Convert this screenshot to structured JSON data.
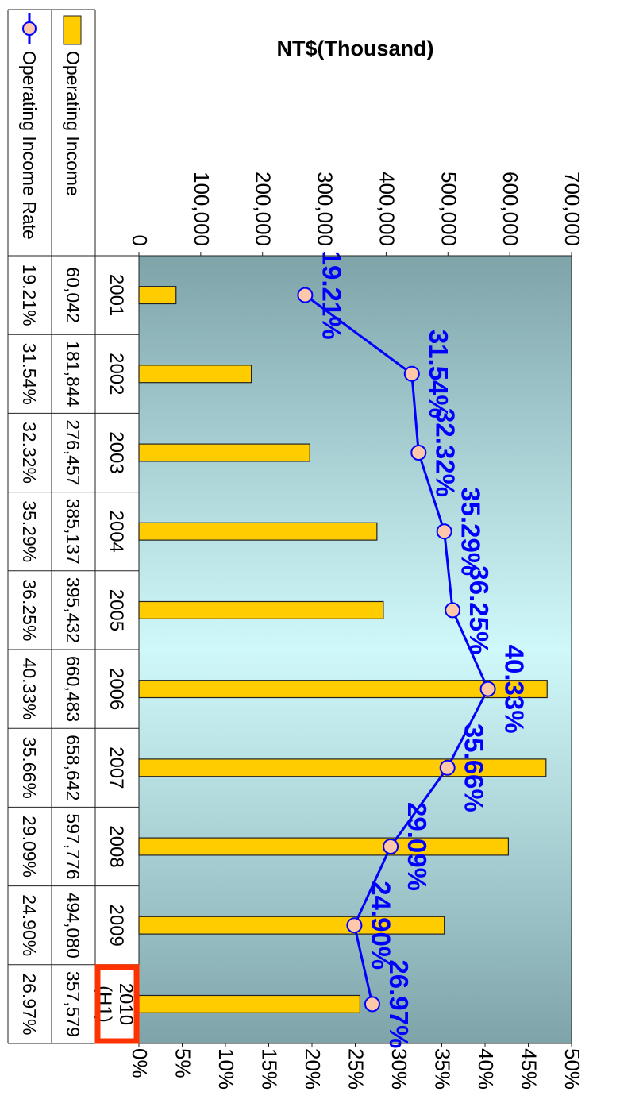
{
  "chart_data": {
    "type": "bar",
    "title": "",
    "xlabel": "",
    "ylabel": "NT$(Thousand)",
    "ylim": [
      0,
      700000
    ],
    "y2lim": [
      0,
      0.5
    ],
    "categories": [
      "2001",
      "2002",
      "2003",
      "2004",
      "2005",
      "2006",
      "2007",
      "2008",
      "2009",
      "2010 (H1)"
    ],
    "series": [
      {
        "name": "Operating Income",
        "kind": "bar",
        "axis": "left",
        "color": "#FFCC00",
        "values": [
          60042,
          181844,
          276457,
          385137,
          395432,
          660483,
          658642,
          597776,
          494080,
          357579
        ]
      },
      {
        "name": "Operating Income Rate",
        "kind": "line",
        "axis": "right",
        "color": "#0000FF",
        "marker_color": "#FFC8A8",
        "values": [
          0.1921,
          0.3154,
          0.3232,
          0.3529,
          0.3625,
          0.4033,
          0.3566,
          0.2909,
          0.249,
          0.2697
        ]
      }
    ],
    "left_ticks": [
      "0",
      "100,000",
      "200,000",
      "300,000",
      "400,000",
      "500,000",
      "600,000",
      "700,000"
    ],
    "right_ticks": [
      "0%",
      "5%",
      "10%",
      "15%",
      "20%",
      "25%",
      "30%",
      "35%",
      "40%",
      "45%",
      "50%"
    ],
    "rate_labels": [
      "19.21%",
      "31.54%",
      "32.32%",
      "35.29%",
      "36.25%",
      "40.33%",
      "35.66%",
      "29.09%",
      "24.90%",
      "26.97%"
    ],
    "table": {
      "category_labels": [
        [
          "2001"
        ],
        [
          "2002"
        ],
        [
          "2003"
        ],
        [
          "2004"
        ],
        [
          "2005"
        ],
        [
          "2006"
        ],
        [
          "2007"
        ],
        [
          "2008"
        ],
        [
          "2009"
        ],
        [
          "2010",
          "(H1)"
        ]
      ],
      "income_row": [
        "60,042",
        "181,844",
        "276,457",
        "385,137",
        "395,432",
        "660,483",
        "658,642",
        "597,776",
        "494,080",
        "357,579"
      ],
      "rate_row": [
        "19.21%",
        "31.54%",
        "32.32%",
        "35.29%",
        "36.25%",
        "40.33%",
        "35.66%",
        "29.09%",
        "24.90%",
        "26.97%"
      ]
    },
    "highlight_category": "2010 (H1)",
    "highlight_color": "#FF3300",
    "legend": "table-left",
    "grid": false,
    "orientation": "rotated-90-clockwise"
  }
}
